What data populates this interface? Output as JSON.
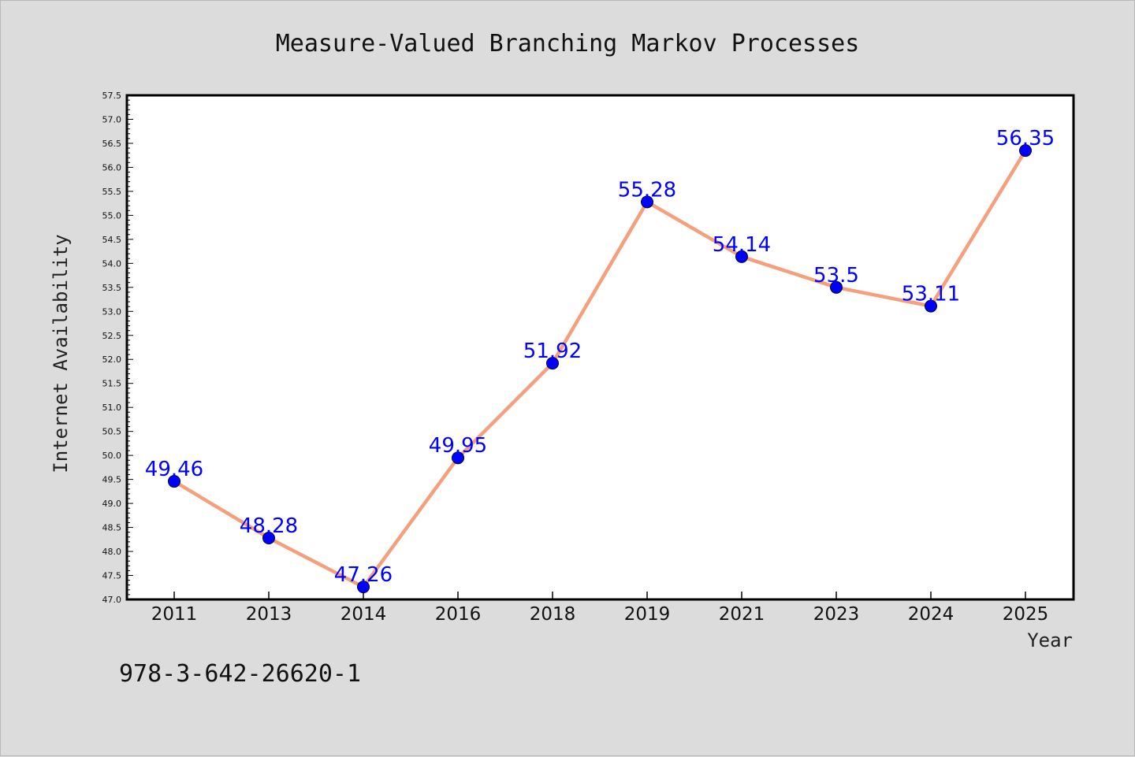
{
  "chart_data": {
    "type": "line",
    "title": "Measure-Valued Branching Markov Processes",
    "xlabel": "Year",
    "ylabel": "Internet Availability",
    "categories": [
      "2011",
      "2013",
      "2014",
      "2016",
      "2018",
      "2019",
      "2021",
      "2023",
      "2024",
      "2025"
    ],
    "series": [
      {
        "values": [
          49.46,
          48.28,
          47.26,
          49.95,
          51.92,
          55.28,
          54.14,
          53.5,
          53.11,
          56.35
        ],
        "point_labels": [
          "49.46",
          "48.28",
          "47.26",
          "49.95",
          "51.92",
          "55.28",
          "54.14",
          "53.5",
          "53.11",
          "56.35"
        ],
        "line_color": "#f4a07c",
        "marker_color": "#0000ff"
      }
    ],
    "ylim": [
      47.0,
      57.5
    ],
    "yticks": [
      "47.0",
      "47.5",
      "48.0",
      "48.5",
      "49.0",
      "49.5",
      "50.0",
      "50.5",
      "51.0",
      "51.5",
      "52.0",
      "52.5",
      "53.0",
      "53.5",
      "54.0",
      "54.5",
      "55.0",
      "55.5",
      "56.0",
      "56.5",
      "57.0",
      "57.5"
    ],
    "grid": false,
    "legend": "none",
    "background_color": "#dcdcdc",
    "plot_background_color": "#ffffff",
    "label_color": "#0000ff"
  },
  "caption": "978-3-642-26620-1"
}
